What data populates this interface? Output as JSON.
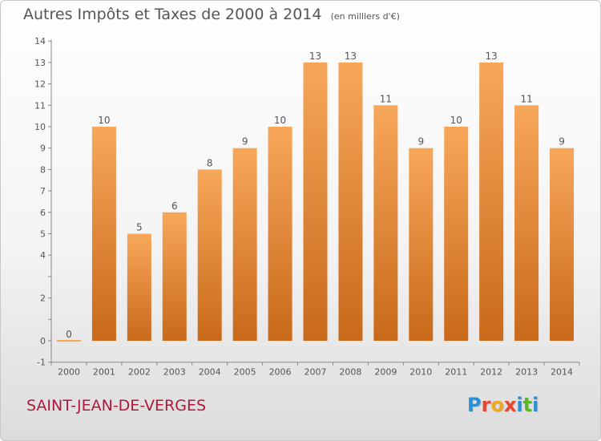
{
  "title": "Autres Impôts et Taxes de 2000 à 2014",
  "subtitle": "(en milliers d'€)",
  "place": "SAINT-JEAN-DE-VERGES",
  "logo": {
    "text": "Proxiti",
    "letters": [
      {
        "char": "P",
        "color": "#2a8fd4"
      },
      {
        "char": "r",
        "color": "#e8462c"
      },
      {
        "char": "o",
        "color": "#f2a51f"
      },
      {
        "char": "x",
        "color": "#e8462c"
      },
      {
        "char": "i",
        "color": "#2a8fd4"
      },
      {
        "char": "t",
        "color": "#5bb531"
      },
      {
        "char": "i",
        "color": "#2a8fd4"
      }
    ]
  },
  "colors": {
    "bar_top": "#f8a75a",
    "bar_bottom": "#c9691a",
    "axis": "#888888",
    "text": "#555555",
    "place": "#b0183b"
  },
  "chart_data": {
    "type": "bar",
    "categories": [
      "2000",
      "2001",
      "2002",
      "2003",
      "2004",
      "2005",
      "2006",
      "2007",
      "2008",
      "2009",
      "2010",
      "2011",
      "2012",
      "2013",
      "2014"
    ],
    "values": [
      0,
      10,
      5,
      6,
      8,
      9,
      10,
      13,
      13,
      11,
      9,
      10,
      13,
      11,
      9
    ],
    "data_labels": [
      "0",
      "10",
      "5",
      "6",
      "8",
      "9",
      "10",
      "13",
      "13",
      "11",
      "9",
      "10",
      "13",
      "11",
      "9"
    ],
    "ylim": [
      -1,
      14
    ],
    "yticks": [
      -1,
      0,
      1,
      2,
      3,
      4,
      5,
      6,
      7,
      8,
      9,
      10,
      11,
      12,
      13,
      14
    ],
    "ytick_labels": [
      "-1",
      "0",
      "",
      "2",
      "",
      "4",
      "5",
      "6",
      "7",
      "8",
      "9",
      "10",
      "11",
      "12",
      "13",
      "14"
    ],
    "xlabel": "",
    "ylabel": "",
    "grid": false
  }
}
